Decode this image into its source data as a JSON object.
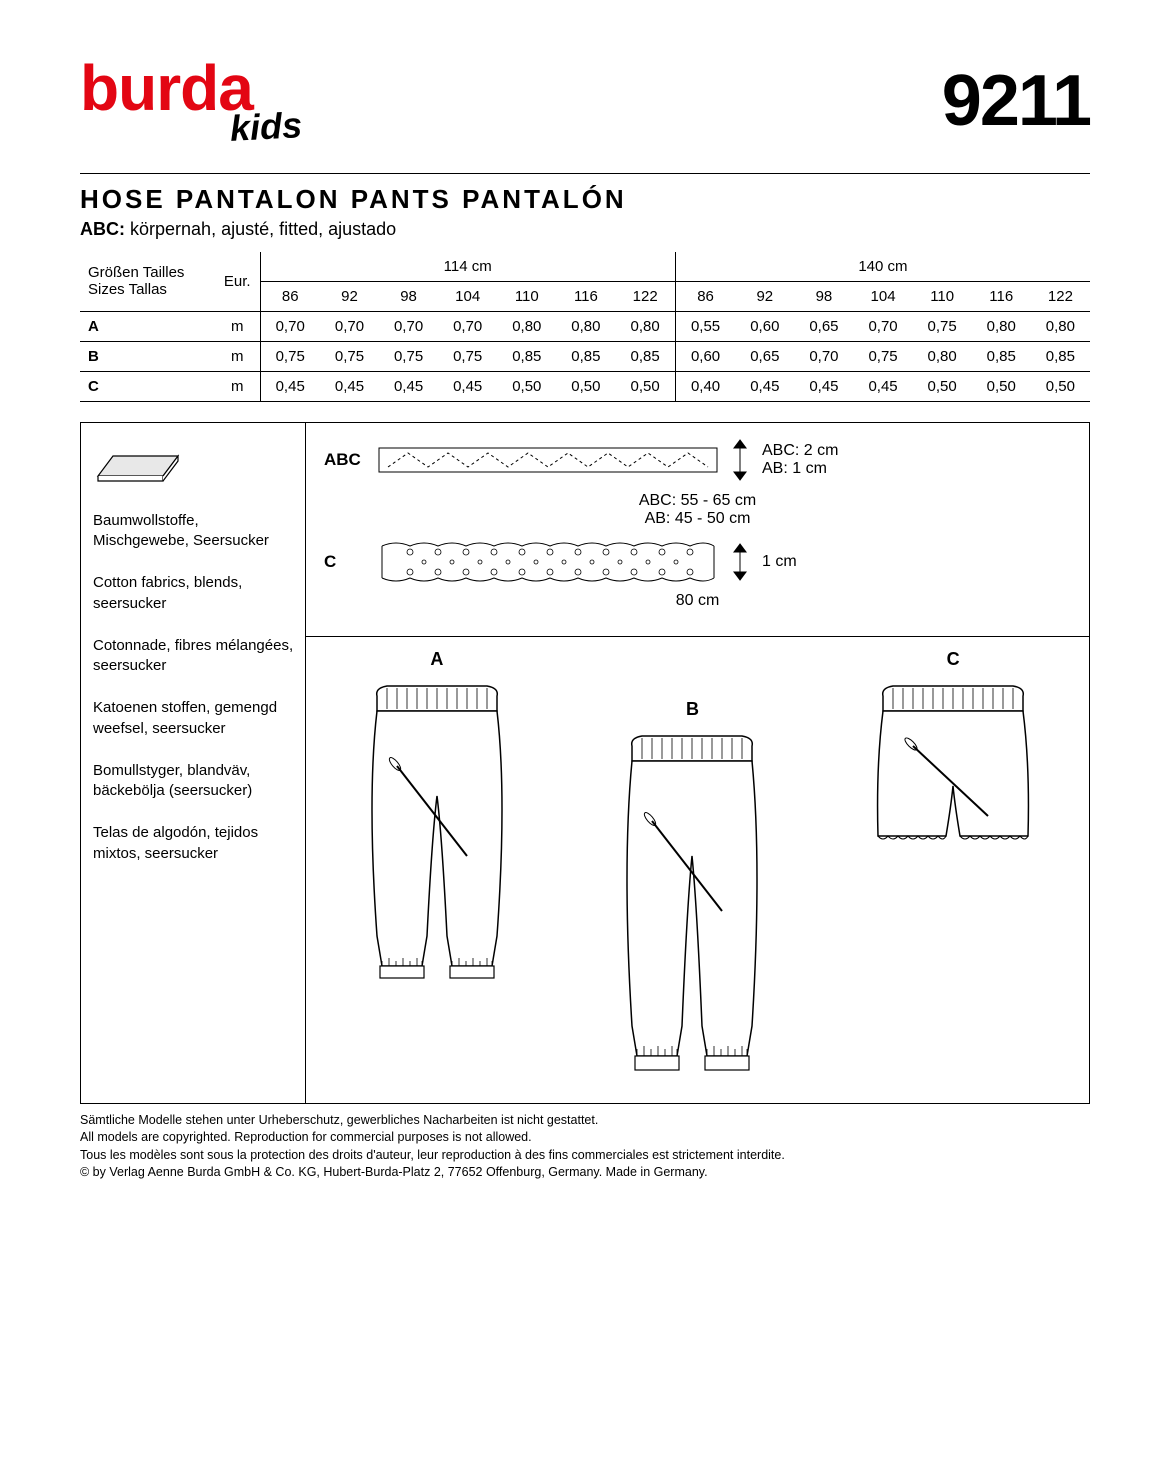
{
  "brand": {
    "main": "burda",
    "sub": "kids",
    "color": "#e30613"
  },
  "pattern_number": "9211",
  "title": "HOSE  PANTALON  PANTS  PANTALÓN",
  "subtitle_label": "ABC:",
  "subtitle_text": "körpernah, ajusté, fitted, ajustado",
  "size_table": {
    "row_header_lines": [
      "Größen  Tailles",
      "Sizes  Tallas"
    ],
    "eur_label": "Eur.",
    "widths": [
      "114 cm",
      "140 cm"
    ],
    "sizes": [
      "86",
      "92",
      "98",
      "104",
      "110",
      "116",
      "122"
    ],
    "unit": "m",
    "rows": [
      {
        "label": "A",
        "w114": [
          "0,70",
          "0,70",
          "0,70",
          "0,70",
          "0,80",
          "0,80",
          "0,80"
        ],
        "w140": [
          "0,55",
          "0,60",
          "0,65",
          "0,70",
          "0,75",
          "0,80",
          "0,80"
        ]
      },
      {
        "label": "B",
        "w114": [
          "0,75",
          "0,75",
          "0,75",
          "0,75",
          "0,85",
          "0,85",
          "0,85"
        ],
        "w140": [
          "0,60",
          "0,65",
          "0,70",
          "0,75",
          "0,80",
          "0,85",
          "0,85"
        ]
      },
      {
        "label": "C",
        "w114": [
          "0,45",
          "0,45",
          "0,45",
          "0,45",
          "0,50",
          "0,50",
          "0,50"
        ],
        "w140": [
          "0,40",
          "0,45",
          "0,45",
          "0,45",
          "0,50",
          "0,50",
          "0,50"
        ]
      }
    ]
  },
  "fabrics": [
    "Baumwollstoffe, Mischgewebe, Seersucker",
    "Cotton fabrics, blends, seersucker",
    "Cotonnade, fibres mélangées, seersucker",
    "Katoenen stoffen, gemengd weefsel, seersucker",
    "Bomullstyger, blandväv, bäckebölja (seersucker)",
    "Telas de algodón, tejidos mixtos, seersucker"
  ],
  "notions": {
    "elastic": {
      "label": "ABC",
      "length": "ABC: 55 - 65 cm",
      "length2": "AB: 45 - 50 cm",
      "width1": "ABC: 2 cm",
      "width2": "AB: 1 cm"
    },
    "lace": {
      "label": "C",
      "length": "80 cm",
      "width": "1 cm"
    }
  },
  "illustrations": {
    "a": "A",
    "b": "B",
    "c": "C"
  },
  "footer": [
    "Sämtliche Modelle stehen unter Urheberschutz, gewerbliches Nacharbeiten ist nicht gestattet.",
    "All models are copyrighted. Reproduction for commercial purposes is not allowed.",
    "Tous les modèles sont sous la protection des droits d'auteur, leur reproduction à des fins commerciales est strictement interdite.",
    "© by Verlag Aenne Burda GmbH & Co. KG, Hubert-Burda-Platz 2, 77652 Offenburg, Germany. Made in Germany."
  ]
}
